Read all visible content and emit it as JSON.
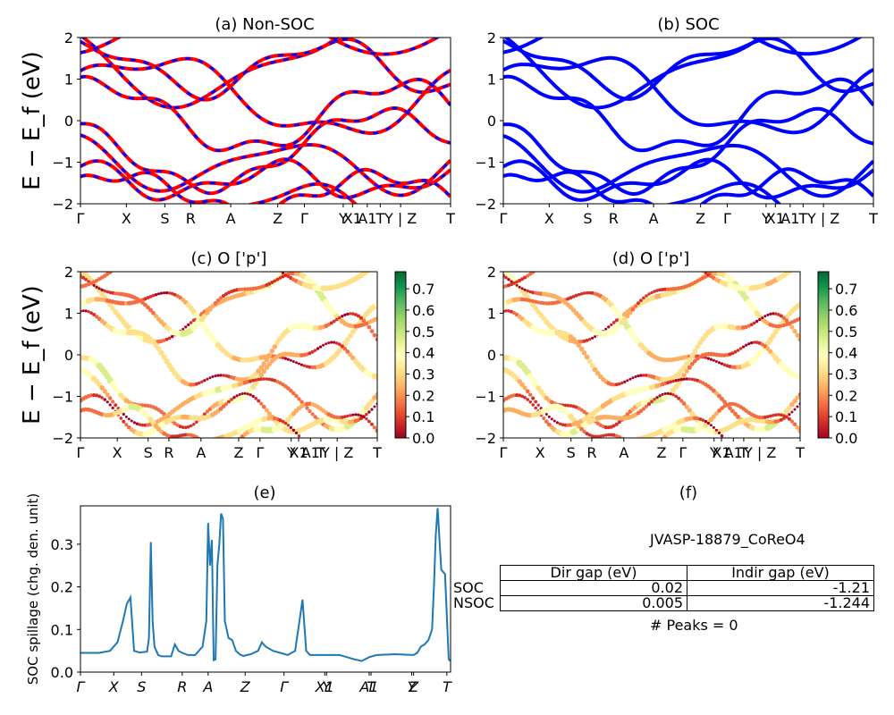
{
  "colors": {
    "nonsoc_line": "#ff0000",
    "nonsoc_dash": "#0000ff",
    "soc_line": "#0000ff",
    "spillage_line": "#1f77b4",
    "colormap": "RdYlGn",
    "colorbar_colors": [
      "#a50026",
      "#d73027",
      "#f46d43",
      "#fdae61",
      "#fee08b",
      "#ffffbf",
      "#d9ef8b",
      "#a6d96a",
      "#66bd63",
      "#1a9850",
      "#006837"
    ]
  },
  "kpath": {
    "labels": [
      "Γ",
      "X",
      "S",
      "R",
      "A",
      "Z",
      "Γ",
      "Y",
      "X1",
      "A1",
      "T",
      "Y | Z",
      "T"
    ]
  },
  "chart_data": [
    {
      "type": "line",
      "panel": "a",
      "title": "(a) Non-SOC",
      "ylabel": "E − E_f (eV)",
      "ylim": [
        -2,
        2
      ],
      "yticks": [
        "−2",
        "−1",
        "0",
        "1",
        "2"
      ],
      "xticks": [
        "Γ",
        "X",
        "S",
        "R",
        "A",
        "Z",
        "Γ",
        "Y",
        "X1",
        "A1",
        "T",
        "Y | Z",
        "T"
      ],
      "note": "electronic band structure, red solid with blue dashes"
    },
    {
      "type": "line",
      "panel": "b",
      "title": "(b) SOC",
      "ylim": [
        -2,
        2
      ],
      "yticks": [
        "−2",
        "−1",
        "0",
        "1",
        "2"
      ],
      "xticks": [
        "Γ",
        "X",
        "S",
        "R",
        "A",
        "Z",
        "Γ",
        "Y",
        "X1",
        "A1",
        "T",
        "Y | Z",
        "T"
      ]
    },
    {
      "type": "scatter",
      "panel": "c",
      "title": "(c)  O ['p']",
      "ylabel": "E − E_f (eV)",
      "ylim": [
        -2,
        2
      ],
      "yticks": [
        "−2",
        "−1",
        "0",
        "1",
        "2"
      ],
      "xticks": [
        "Γ",
        "X",
        "S",
        "R",
        "A",
        "Z",
        "Γ",
        "Y",
        "X1",
        "A1",
        "T",
        "Y | Z",
        "T"
      ],
      "colorbar_ticks": [
        "0.0",
        "0.1",
        "0.2",
        "0.3",
        "0.4",
        "0.5",
        "0.6",
        "0.7"
      ],
      "colorbar_range": [
        0,
        0.78
      ]
    },
    {
      "type": "scatter",
      "panel": "d",
      "title": "(d) O ['p']",
      "ylim": [
        -2,
        2
      ],
      "yticks": [
        "−2",
        "−1",
        "0",
        "1",
        "2"
      ],
      "xticks": [
        "Γ",
        "X",
        "S",
        "R",
        "A",
        "Z",
        "Γ",
        "Y",
        "X1",
        "A1",
        "T",
        "Y | Z",
        "T"
      ],
      "colorbar_ticks": [
        "0.0",
        "0.1",
        "0.2",
        "0.3",
        "0.4",
        "0.5",
        "0.6",
        "0.7"
      ],
      "colorbar_range": [
        0,
        0.78
      ]
    },
    {
      "type": "line",
      "panel": "e",
      "title": "(e)",
      "ylabel": "SOC spillage (chg. den. unit)",
      "ylim": [
        0,
        0.39
      ],
      "yticks": [
        "0.0",
        "0.1",
        "0.2",
        "0.3"
      ],
      "xticks": [
        "Γ",
        "X",
        "S",
        "R",
        "A",
        "Z",
        "Γ",
        "X1",
        "Y",
        "A1",
        "T",
        "Y",
        "Z",
        "T"
      ],
      "xticks_italic": true,
      "x": [
        0,
        0.05,
        0.08,
        0.1,
        0.115,
        0.125,
        0.135,
        0.145,
        0.16,
        0.18,
        0.185,
        0.19,
        0.195,
        0.2,
        0.21,
        0.22,
        0.245,
        0.255,
        0.265,
        0.275,
        0.29,
        0.31,
        0.33,
        0.34,
        0.345,
        0.35,
        0.355,
        0.36,
        0.365,
        0.37,
        0.375,
        0.38,
        0.385,
        0.39,
        0.4,
        0.41,
        0.42,
        0.43,
        0.44,
        0.46,
        0.48,
        0.49,
        0.5,
        0.52,
        0.54,
        0.56,
        0.57,
        0.58,
        0.59,
        0.6,
        0.61,
        0.62,
        0.64,
        0.7,
        0.74,
        0.76,
        0.78,
        0.8,
        0.85,
        0.9,
        0.91,
        0.92,
        0.93,
        0.94,
        0.95,
        0.955,
        0.96,
        0.965,
        0.975,
        0.985,
        0.995,
        1.0
      ],
      "values": [
        0.045,
        0.045,
        0.05,
        0.07,
        0.12,
        0.16,
        0.175,
        0.05,
        0.046,
        0.048,
        0.08,
        0.305,
        0.12,
        0.06,
        0.04,
        0.037,
        0.037,
        0.065,
        0.05,
        0.045,
        0.04,
        0.04,
        0.06,
        0.12,
        0.35,
        0.25,
        0.31,
        0.028,
        0.03,
        0.25,
        0.3,
        0.372,
        0.36,
        0.12,
        0.08,
        0.075,
        0.05,
        0.042,
        0.038,
        0.042,
        0.05,
        0.07,
        0.06,
        0.05,
        0.045,
        0.04,
        0.045,
        0.05,
        0.11,
        0.17,
        0.05,
        0.04,
        0.04,
        0.04,
        0.03,
        0.026,
        0.035,
        0.04,
        0.042,
        0.04,
        0.045,
        0.06,
        0.065,
        0.075,
        0.1,
        0.2,
        0.32,
        0.385,
        0.24,
        0.23,
        0.03,
        0.026
      ]
    }
  ],
  "panel_f": {
    "title": "(f)",
    "material": "JVASP-18879_CoReO4",
    "col_headers": [
      "Dir gap (eV)",
      "Indir gap (eV)"
    ],
    "rows": [
      {
        "label": "SOC",
        "dir": "0.02",
        "indir": "-1.21"
      },
      {
        "label": "NSOC",
        "dir": "0.005",
        "indir": "-1.244"
      }
    ],
    "peaks": "# Peaks = 0"
  }
}
